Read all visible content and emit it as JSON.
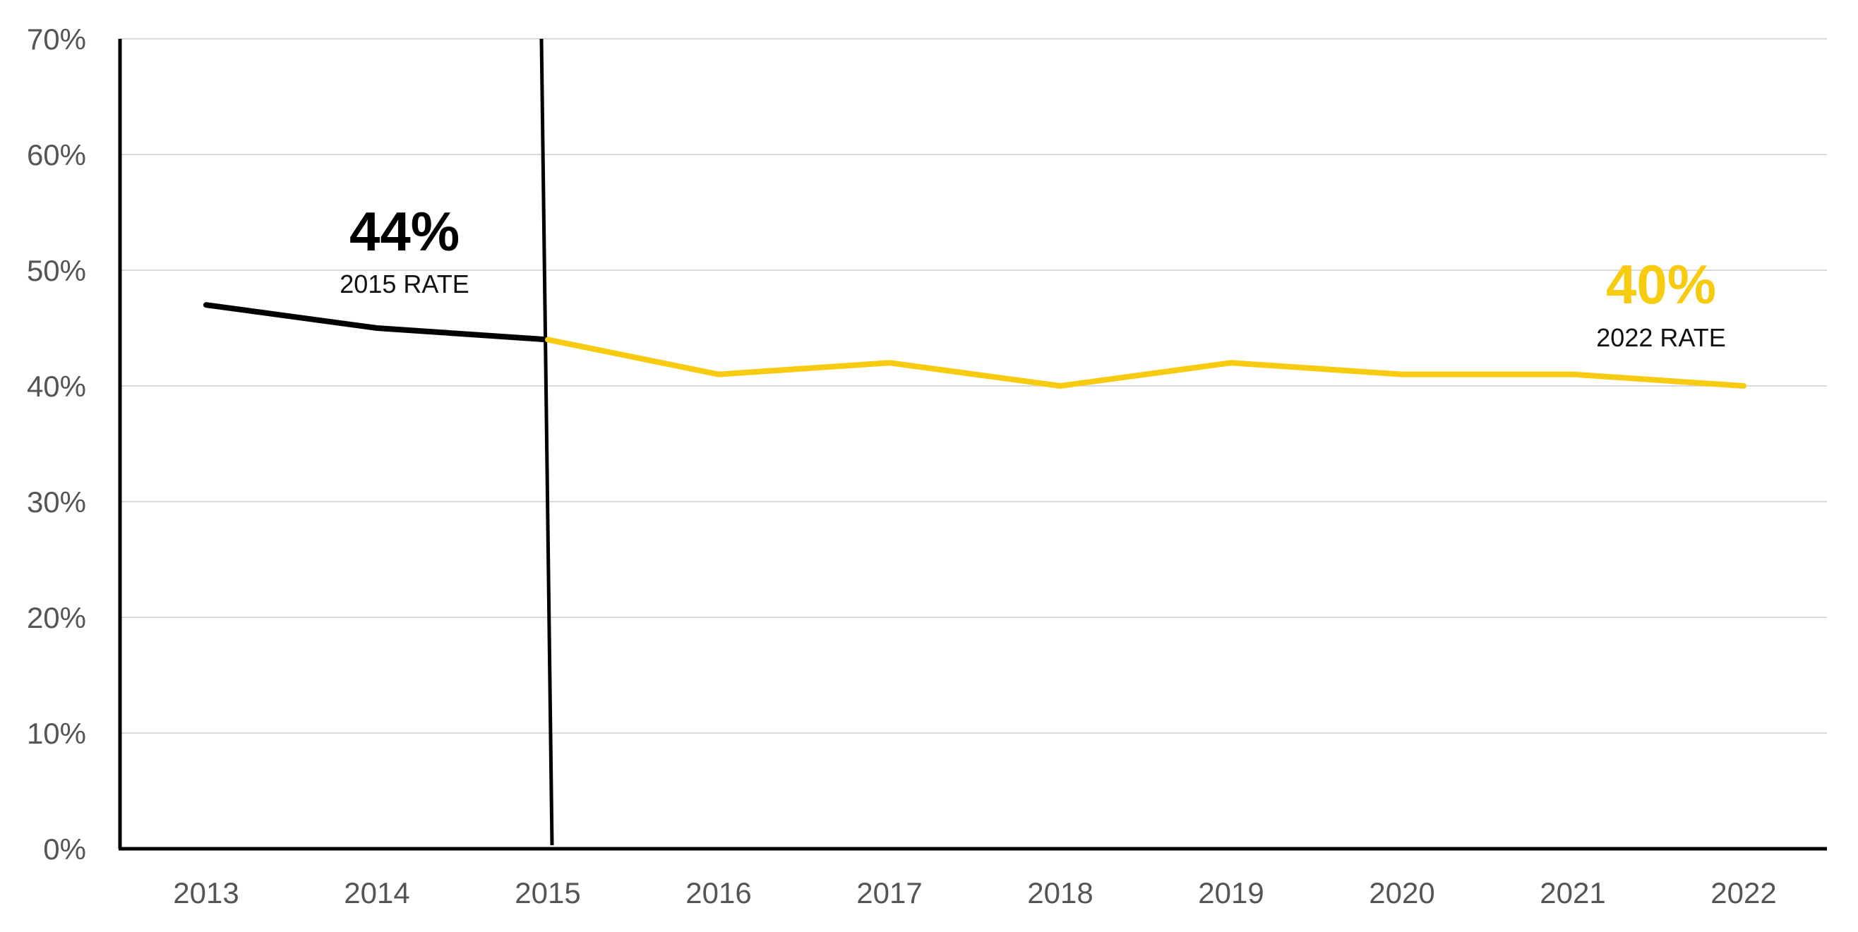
{
  "chart_data": {
    "type": "line",
    "title": "",
    "xlabel": "",
    "ylabel": "",
    "x": [
      "2013",
      "2014",
      "2015",
      "2016",
      "2017",
      "2018",
      "2019",
      "2020",
      "2021",
      "2022"
    ],
    "ylim": [
      0,
      70
    ],
    "y_ticks": [
      0,
      10,
      20,
      30,
      40,
      50,
      60,
      70
    ],
    "y_tick_suffix": "%",
    "grid": "horizontal",
    "legend": "none",
    "series": [
      {
        "color": "#000000",
        "x": [
          "2013",
          "2014",
          "2015"
        ],
        "values": [
          47,
          45,
          44
        ]
      },
      {
        "color": "#F7CB0F",
        "x": [
          "2015",
          "2016",
          "2017",
          "2018",
          "2019",
          "2020",
          "2021",
          "2022"
        ],
        "values": [
          44,
          41,
          42,
          40,
          42,
          41,
          41,
          40
        ]
      }
    ],
    "reference_line": {
      "x": "2015",
      "color": "#000000"
    },
    "annotations": [
      {
        "id": "rate-2015",
        "value": "44%",
        "label": "2015 RATE",
        "color": "#000000"
      },
      {
        "id": "rate-2022",
        "value": "40%",
        "label": "2022 RATE",
        "color": "#F7CB0F"
      }
    ]
  }
}
